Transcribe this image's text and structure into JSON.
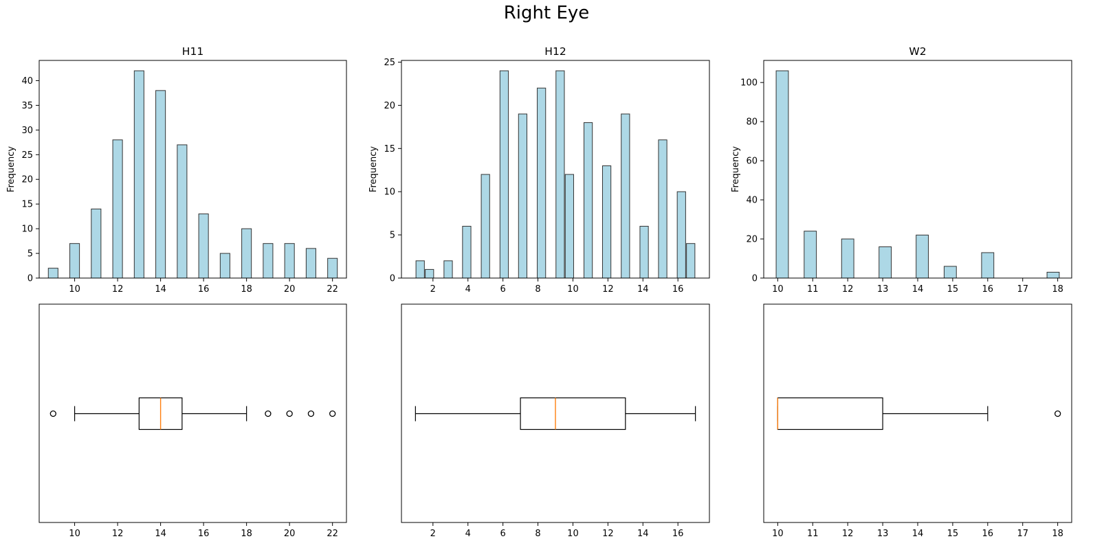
{
  "figure": {
    "title": "Right Eye"
  },
  "colors": {
    "bar_fill": "#add8e6",
    "bar_edge": "#333333",
    "median": "#ff7f0e",
    "box": "#000000"
  },
  "chart_data": [
    {
      "type": "bar",
      "kind": "histogram",
      "title": "H11",
      "ylabel": "Frequency",
      "xlabel": "",
      "xlim": [
        8.35,
        22.65
      ],
      "ylim": [
        0,
        44.1
      ],
      "xticks": [
        10,
        12,
        14,
        16,
        18,
        20,
        22
      ],
      "yticks": [
        0,
        5,
        10,
        15,
        20,
        25,
        30,
        35,
        40
      ],
      "bins": [
        {
          "x": 9,
          "count": 2
        },
        {
          "x": 10,
          "count": 7
        },
        {
          "x": 11,
          "count": 14
        },
        {
          "x": 12,
          "count": 28
        },
        {
          "x": 13,
          "count": 42
        },
        {
          "x": 14,
          "count": 38
        },
        {
          "x": 15,
          "count": 27
        },
        {
          "x": 16,
          "count": 13
        },
        {
          "x": 17,
          "count": 5
        },
        {
          "x": 18,
          "count": 10
        },
        {
          "x": 19,
          "count": 7
        },
        {
          "x": 20,
          "count": 7
        },
        {
          "x": 21,
          "count": 6
        },
        {
          "x": 22,
          "count": 4
        }
      ]
    },
    {
      "type": "bar",
      "kind": "histogram",
      "title": "H12",
      "ylabel": "Frequency",
      "xlabel": "",
      "xlim": [
        0.2,
        17.8
      ],
      "ylim": [
        0,
        25.2
      ],
      "xticks": [
        2,
        4,
        6,
        8,
        10,
        12,
        14,
        16
      ],
      "yticks": [
        0,
        5,
        10,
        15,
        20,
        25
      ],
      "bins": [
        {
          "x": 1.27,
          "count": 2
        },
        {
          "x": 1.8,
          "count": 1
        },
        {
          "x": 2.87,
          "count": 2
        },
        {
          "x": 3.93,
          "count": 6
        },
        {
          "x": 5.0,
          "count": 12
        },
        {
          "x": 6.07,
          "count": 24
        },
        {
          "x": 7.13,
          "count": 19
        },
        {
          "x": 8.2,
          "count": 22
        },
        {
          "x": 9.27,
          "count": 24
        },
        {
          "x": 9.8,
          "count": 12
        },
        {
          "x": 10.87,
          "count": 18
        },
        {
          "x": 11.93,
          "count": 13
        },
        {
          "x": 13.0,
          "count": 19
        },
        {
          "x": 14.07,
          "count": 6
        },
        {
          "x": 15.13,
          "count": 16
        },
        {
          "x": 16.2,
          "count": 10
        },
        {
          "x": 16.73,
          "count": 4
        }
      ]
    },
    {
      "type": "bar",
      "kind": "histogram",
      "title": "W2",
      "ylabel": "Frequency",
      "xlabel": "",
      "xlim": [
        9.6,
        18.4
      ],
      "ylim": [
        0,
        111.3
      ],
      "xticks": [
        10,
        11,
        12,
        13,
        14,
        15,
        16,
        17,
        18
      ],
      "yticks": [
        0,
        20,
        40,
        60,
        80,
        100
      ],
      "bins": [
        {
          "x": 10.13,
          "count": 106
        },
        {
          "x": 10.93,
          "count": 24
        },
        {
          "x": 12.0,
          "count": 20
        },
        {
          "x": 13.07,
          "count": 16
        },
        {
          "x": 14.13,
          "count": 22
        },
        {
          "x": 14.93,
          "count": 6
        },
        {
          "x": 16.0,
          "count": 13
        },
        {
          "x": 17.87,
          "count": 3
        }
      ]
    },
    {
      "type": "boxplot",
      "orientation": "horizontal",
      "xlim": [
        8.35,
        22.65
      ],
      "xticks": [
        10,
        12,
        14,
        16,
        18,
        20,
        22
      ],
      "q1": 13,
      "median": 14,
      "q3": 15,
      "whisker_low": 10,
      "whisker_high": 18,
      "outliers": [
        9,
        19,
        20,
        21,
        22
      ]
    },
    {
      "type": "boxplot",
      "orientation": "horizontal",
      "xlim": [
        0.2,
        17.8
      ],
      "xticks": [
        2,
        4,
        6,
        8,
        10,
        12,
        14,
        16
      ],
      "q1": 7,
      "median": 9,
      "q3": 13,
      "whisker_low": 1,
      "whisker_high": 17,
      "outliers": []
    },
    {
      "type": "boxplot",
      "orientation": "horizontal",
      "xlim": [
        9.6,
        18.4
      ],
      "xticks": [
        10,
        11,
        12,
        13,
        14,
        15,
        16,
        17,
        18
      ],
      "q1": 10,
      "median": 10,
      "q3": 13,
      "whisker_low": 10,
      "whisker_high": 16,
      "outliers": [
        18
      ]
    }
  ]
}
